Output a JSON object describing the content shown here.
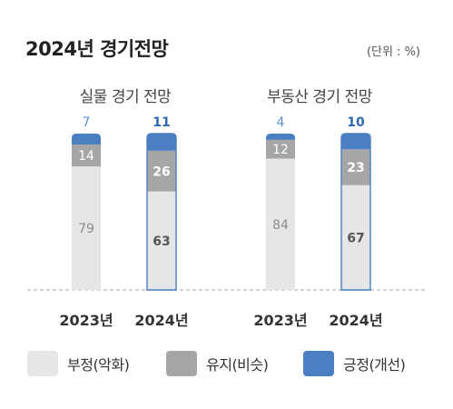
{
  "header": {
    "title": "2024년 경기전망",
    "unit": "(단위 : %)"
  },
  "colors": {
    "negative": "#e6e6e6",
    "maintain": "#a6a6a6",
    "positive": "#4a7fc1",
    "highlight_text": "#2e69b3",
    "normal_top_text": "#5b8fd0",
    "normal_mid_text": "#ffffff",
    "normal_low_text": "#8c8c8c",
    "highlight_low_text": "#555555",
    "highlight_border": "#4a7fc1",
    "baseline": "#bbbbbb"
  },
  "legend": [
    {
      "key": "negative",
      "label": "부정(악화)"
    },
    {
      "key": "maintain",
      "label": "유지(비슷)"
    },
    {
      "key": "positive",
      "label": "긍정(개선)"
    }
  ],
  "chart_data": [
    {
      "type": "bar",
      "stacked": true,
      "title": "실물 경기 전망",
      "categories": [
        "2023년",
        "2024년"
      ],
      "highlight": "2024년",
      "series": [
        {
          "name": "부정(악화)",
          "values": [
            79,
            63
          ]
        },
        {
          "name": "유지(비슷)",
          "values": [
            14,
            26
          ]
        },
        {
          "name": "긍정(개선)",
          "values": [
            7,
            11
          ]
        }
      ],
      "ylim": [
        0,
        100
      ],
      "legend_position": "bottom"
    },
    {
      "type": "bar",
      "stacked": true,
      "title": "부동산 경기 전망",
      "categories": [
        "2023년",
        "2024년"
      ],
      "highlight": "2024년",
      "series": [
        {
          "name": "부정(악화)",
          "values": [
            84,
            67
          ]
        },
        {
          "name": "유지(비슷)",
          "values": [
            12,
            23
          ]
        },
        {
          "name": "긍정(개선)",
          "values": [
            4,
            10
          ]
        }
      ],
      "ylim": [
        0,
        100
      ],
      "legend_position": "bottom"
    }
  ]
}
